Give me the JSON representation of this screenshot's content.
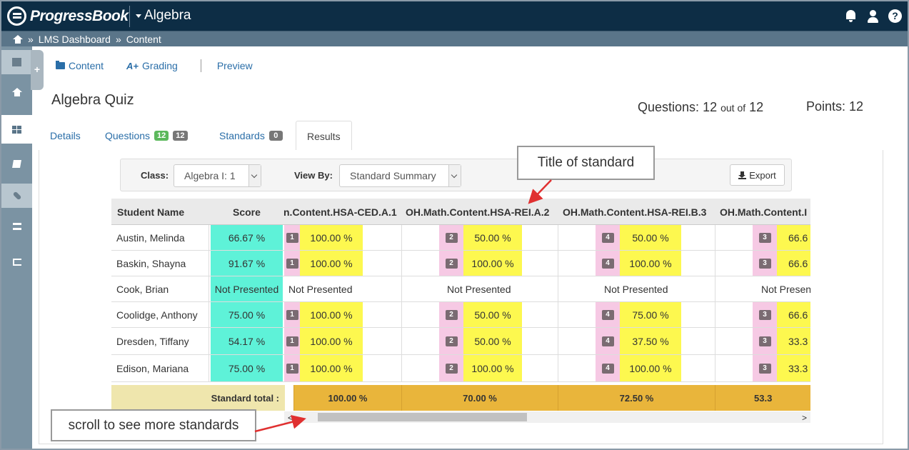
{
  "topbar": {
    "brand": "ProgressBook",
    "course": "Algebra",
    "icons": [
      "bell-icon",
      "user-icon",
      "help-icon"
    ],
    "help_glyph": "?"
  },
  "breadcrumb": {
    "items": [
      "LMS Dashboard",
      "Content"
    ],
    "separator": "»"
  },
  "subnav": {
    "content": "Content",
    "grading_icon": "A+",
    "grading": "Grading",
    "preview": "Preview"
  },
  "quiz": {
    "title": "Algebra Quiz",
    "questions_label": "Questions:",
    "questions_count": "12",
    "out_of": "out of",
    "questions_total": "12",
    "points_label": "Points:",
    "points": "12"
  },
  "tabs": {
    "details": "Details",
    "questions": "Questions",
    "questions_badge_green": "12",
    "questions_badge_gray": "12",
    "standards": "Standards",
    "standards_badge": "0",
    "results": "Results"
  },
  "filters": {
    "class_label": "Class:",
    "class_value": "Algebra I: 1",
    "viewby_label": "View By:",
    "viewby_value": "Standard Summary",
    "export": "Export"
  },
  "table": {
    "headers": {
      "student": "Student Name",
      "score": "Score",
      "std1": "n.Content.HSA-CED.A.1",
      "std2": "OH.Math.Content.HSA-REI.A.2",
      "std3": "OH.Math.Content.HSA-REI.B.3",
      "std4": "OH.Math.Content.I"
    },
    "rows": [
      {
        "name": "Austin, Melinda",
        "score": "66.67 %",
        "c1": "1",
        "v1": "100.00 %",
        "c2": "2",
        "v2": "50.00 %",
        "c3": "4",
        "v3": "50.00 %",
        "c4": "3",
        "v4": "66.6"
      },
      {
        "name": "Baskin, Shayna",
        "score": "91.67 %",
        "c1": "1",
        "v1": "100.00 %",
        "c2": "2",
        "v2": "100.00 %",
        "c3": "4",
        "v3": "100.00 %",
        "c4": "3",
        "v4": "66.6"
      },
      {
        "name": "Cook, Brian",
        "score": "Not Presented",
        "np1": "Not Presented",
        "np2": "Not Presented",
        "np3": "Not Presented",
        "np4": "Not Presen"
      },
      {
        "name": "Coolidge, Anthony",
        "score": "75.00 %",
        "c1": "1",
        "v1": "100.00 %",
        "c2": "2",
        "v2": "50.00 %",
        "c3": "4",
        "v3": "75.00 %",
        "c4": "3",
        "v4": "66.6"
      },
      {
        "name": "Dresden, Tiffany",
        "score": "54.17 %",
        "c1": "1",
        "v1": "100.00 %",
        "c2": "2",
        "v2": "50.00 %",
        "c3": "4",
        "v3": "37.50 %",
        "c4": "3",
        "v4": "33.3"
      },
      {
        "name": "Edison, Mariana",
        "score": "75.00 %",
        "c1": "1",
        "v1": "100.00 %",
        "c2": "2",
        "v2": "100.00 %",
        "c3": "4",
        "v3": "100.00 %",
        "c4": "3",
        "v4": "33.3"
      }
    ],
    "totals": {
      "label": "Standard total :",
      "t1": "100.00 %",
      "t2": "70.00 %",
      "t3": "72.50 %",
      "t4": "53.3"
    }
  },
  "scroll": {
    "left": "<",
    "right": ">"
  },
  "callouts": {
    "title_of_standard": "Title of standard",
    "scroll_hint": "scroll to see more standards"
  },
  "colors": {
    "topbar": "#0d2d45",
    "score_cell": "#5ef2d8",
    "count_cell": "#f6c9e4",
    "value_cell": "#fdf84f",
    "total_cell": "#e9b53b",
    "callout_arrow": "#e03030"
  }
}
